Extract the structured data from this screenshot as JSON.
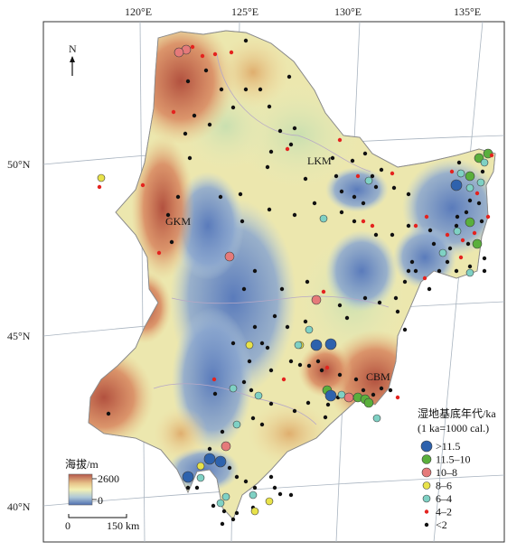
{
  "map": {
    "longitude_labels": [
      "120°E",
      "125°E",
      "130°E",
      "135°E"
    ],
    "latitude_labels": [
      "50°N",
      "45°N",
      "40°N"
    ],
    "north_arrow": "N",
    "region_labels": [
      "GKM",
      "LKM",
      "CBM"
    ]
  },
  "elevation_legend": {
    "title": "海拔/m",
    "max": "2600",
    "min": "0",
    "colors": [
      "#b5584a",
      "#e8c48a",
      "#f3f0b4",
      "#aec8d8",
      "#4f6fb0"
    ]
  },
  "scale_bar": {
    "zero": "0",
    "end": "150 km"
  },
  "age_legend": {
    "title": "湿地基底年代/ka",
    "subtitle": "(1 ka=1000 cal.)",
    "classes": [
      {
        "label": ">11.5",
        "color": "#2e62ad",
        "size": "large"
      },
      {
        "label": "11.5–10",
        "color": "#5aaf3c",
        "size": "medium"
      },
      {
        "label": "10–8",
        "color": "#e57a7a",
        "size": "medium"
      },
      {
        "label": "8–6",
        "color": "#e8e24a",
        "size": "small"
      },
      {
        "label": "6–4",
        "color": "#7fd1c4",
        "size": "small"
      },
      {
        "label": "4–2",
        "color": "#e4231f",
        "size": "tiny"
      },
      {
        "label": "<2",
        "color": "#111111",
        "size": "tiny"
      }
    ]
  }
}
